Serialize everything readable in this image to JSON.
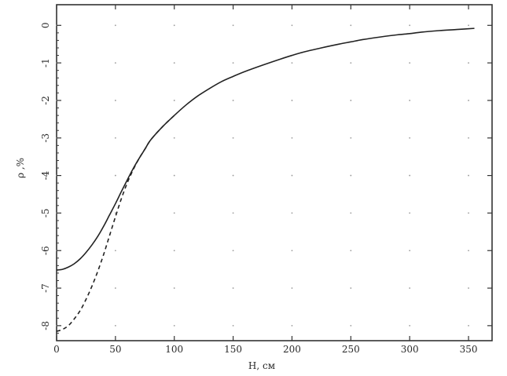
{
  "chart_data": {
    "type": "line",
    "title": "",
    "xlabel": "H, см",
    "ylabel": "ρ ,%",
    "xlim": [
      0,
      370
    ],
    "ylim": [
      -8.4,
      0.55
    ],
    "x_ticks": [
      0,
      50,
      100,
      150,
      200,
      250,
      300,
      350
    ],
    "y_ticks": [
      0,
      -1,
      -2,
      -3,
      -4,
      -5,
      -6,
      -7,
      -8
    ],
    "grid": "dotted",
    "legend": "none",
    "series": [
      {
        "style": "solid",
        "color": "#222222",
        "x": [
          0,
          5,
          10,
          15,
          20,
          25,
          30,
          35,
          40,
          45,
          50,
          55,
          60,
          65,
          70,
          75,
          80,
          90,
          100,
          110,
          120,
          130,
          140,
          150,
          160,
          175,
          190,
          200,
          210,
          225,
          240,
          250,
          260,
          275,
          290,
          300,
          310,
          325,
          340,
          355
        ],
        "y": [
          -6.52,
          -6.5,
          -6.44,
          -6.35,
          -6.22,
          -6.05,
          -5.85,
          -5.62,
          -5.35,
          -5.05,
          -4.75,
          -4.43,
          -4.12,
          -3.82,
          -3.55,
          -3.3,
          -3.05,
          -2.7,
          -2.4,
          -2.12,
          -1.88,
          -1.68,
          -1.5,
          -1.36,
          -1.23,
          -1.06,
          -0.9,
          -0.8,
          -0.71,
          -0.6,
          -0.5,
          -0.44,
          -0.38,
          -0.31,
          -0.25,
          -0.22,
          -0.18,
          -0.14,
          -0.11,
          -0.08
        ]
      },
      {
        "style": "dashed",
        "color": "#222222",
        "x": [
          0,
          5,
          10,
          15,
          20,
          25,
          30,
          35,
          40,
          45,
          50,
          55,
          60,
          65,
          70,
          75,
          80,
          90,
          100
        ],
        "y": [
          -8.15,
          -8.1,
          -8.0,
          -7.82,
          -7.6,
          -7.3,
          -6.95,
          -6.55,
          -6.1,
          -5.6,
          -5.1,
          -4.62,
          -4.2,
          -3.85,
          -3.55,
          -3.3,
          -3.05,
          -2.7,
          -2.4
        ]
      }
    ],
    "colors": {
      "line": "#222222",
      "frame": "#333333",
      "grid_dot": "#9a9a9a"
    }
  }
}
